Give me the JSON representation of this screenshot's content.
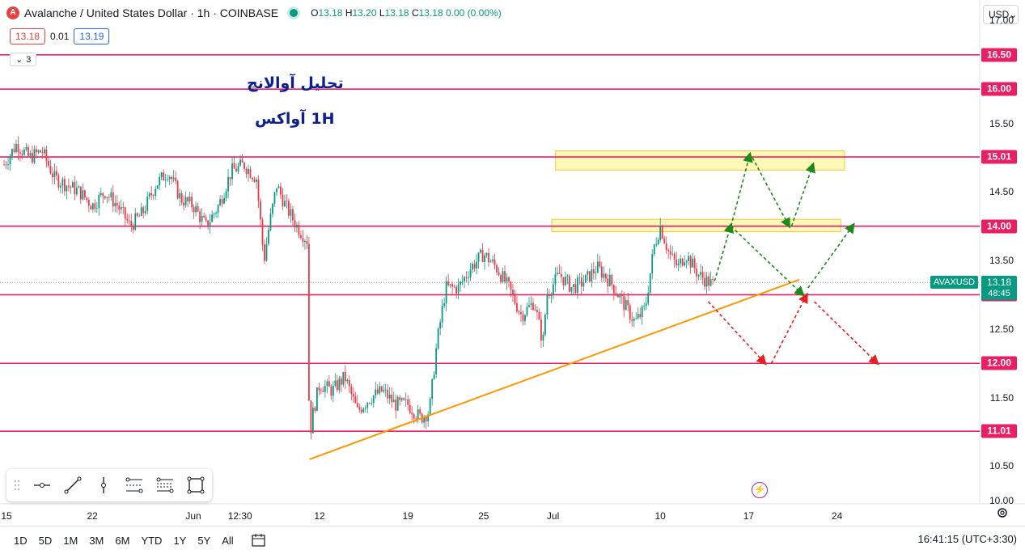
{
  "header": {
    "logo_letter": "A",
    "title": "Avalanche / United States Dollar · 1h · COINBASE",
    "ohlc": [
      {
        "k": "O",
        "v": "13.18"
      },
      {
        "k": "H",
        "v": "13.20"
      },
      {
        "k": "L",
        "v": "13.18"
      },
      {
        "k": "C",
        "v": "13.18"
      },
      {
        "k": "",
        "v": "0.00 (0.00%)"
      }
    ],
    "sell_price": "13.18",
    "spread": "0.01",
    "buy_price": "13.19",
    "indicator_count": "3",
    "currency": "USD"
  },
  "annotation": {
    "line1": "تحلیل آوالانچ",
    "line2": "1H  آواکس"
  },
  "chart_data": {
    "type": "candlestick",
    "symbol": "AVAXUSD",
    "exchange": "COINBASE",
    "interval": "1h",
    "ylim": [
      9.95,
      17.3
    ],
    "y_ticks": [
      "10.00",
      "10.50",
      "11.50",
      "12.50",
      "13.50",
      "14.50",
      "15.50",
      "17.00"
    ],
    "horizontal_levels": [
      "16.50",
      "16.00",
      "15.01",
      "14.00",
      "13.00",
      "12.00",
      "11.01"
    ],
    "current_price": "13.18",
    "countdown": "48:45",
    "x_ticks": [
      {
        "label": "15",
        "x": 0
      },
      {
        "label": "22",
        "x": 7
      },
      {
        "label": "Jun",
        "x": 15
      },
      {
        "label": "12:30",
        "x": 18.7
      },
      {
        "label": "12",
        "x": 25
      },
      {
        "label": "19",
        "x": 32
      },
      {
        "label": "25",
        "x": 38
      },
      {
        "label": "Jul",
        "x": 43.5
      },
      {
        "label": "10",
        "x": 52
      },
      {
        "label": "17",
        "x": 59
      },
      {
        "label": "24",
        "x": 66
      }
    ],
    "price_path": [
      [
        0,
        14.9
      ],
      [
        1,
        15.2
      ],
      [
        2,
        15.0
      ],
      [
        3,
        15.1
      ],
      [
        4,
        14.7
      ],
      [
        5,
        14.6
      ],
      [
        6,
        14.5
      ],
      [
        7,
        14.3
      ],
      [
        8,
        14.5
      ],
      [
        9,
        14.3
      ],
      [
        10,
        14.0
      ],
      [
        11,
        14.2
      ],
      [
        12,
        14.6
      ],
      [
        13,
        14.8
      ],
      [
        14,
        14.4
      ],
      [
        15,
        14.3
      ],
      [
        16,
        14.0
      ],
      [
        17,
        14.3
      ],
      [
        18,
        14.8
      ],
      [
        19,
        14.9
      ],
      [
        20,
        14.7
      ],
      [
        20.6,
        13.5
      ],
      [
        21,
        14.0
      ],
      [
        21.6,
        14.6
      ],
      [
        22.3,
        14.3
      ],
      [
        23.2,
        14.0
      ],
      [
        24,
        13.8
      ],
      [
        24.2,
        10.9
      ],
      [
        24.5,
        11.3
      ],
      [
        25,
        11.7
      ],
      [
        26,
        11.6
      ],
      [
        27,
        11.8
      ],
      [
        28,
        11.3
      ],
      [
        29,
        11.5
      ],
      [
        30,
        11.6
      ],
      [
        31,
        11.4
      ],
      [
        32,
        11.4
      ],
      [
        33,
        11.2
      ],
      [
        33.7,
        11.3
      ],
      [
        34.3,
        12.3
      ],
      [
        35,
        13.1
      ],
      [
        36,
        13.1
      ],
      [
        37,
        13.4
      ],
      [
        38,
        13.6
      ],
      [
        39,
        13.4
      ],
      [
        40,
        13.1
      ],
      [
        41,
        12.7
      ],
      [
        42,
        12.9
      ],
      [
        42.7,
        12.3
      ],
      [
        43,
        13.0
      ],
      [
        44,
        13.3
      ],
      [
        45,
        13.1
      ],
      [
        46,
        13.2
      ],
      [
        47,
        13.4
      ],
      [
        48,
        13.2
      ],
      [
        49,
        12.9
      ],
      [
        50,
        12.6
      ],
      [
        50.8,
        12.8
      ],
      [
        51.5,
        13.7
      ],
      [
        52,
        14.0
      ],
      [
        52.7,
        13.6
      ],
      [
        53.4,
        13.4
      ],
      [
        54,
        13.6
      ],
      [
        55,
        13.3
      ],
      [
        55.7,
        13.2
      ],
      [
        56.2,
        13.15
      ]
    ],
    "trendline": [
      [
        24.2,
        10.6
      ],
      [
        63,
        13.22
      ]
    ],
    "zones": [
      {
        "x": [
          43.7,
          66.6
        ],
        "y": [
          14.82,
          15.1
        ],
        "color": "#fff59d"
      },
      {
        "x": [
          43.4,
          66.3
        ],
        "y": [
          13.92,
          14.1
        ],
        "color": "#fff59d"
      }
    ],
    "scenario_arrows": [
      {
        "color": "#1a8a1a",
        "from": [
          56.3,
          13.2
        ],
        "to": [
          57.6,
          14.02
        ]
      },
      {
        "color": "#1a8a1a",
        "from": [
          57.6,
          14.0
        ],
        "to": [
          59.1,
          15.05
        ]
      },
      {
        "color": "#1a8a1a",
        "from": [
          59.3,
          15.0
        ],
        "to": [
          62.2,
          14.0
        ]
      },
      {
        "color": "#1a8a1a",
        "from": [
          62.4,
          14.0
        ],
        "to": [
          64.1,
          14.9
        ]
      },
      {
        "color": "#1a8a1a",
        "from": [
          57.6,
          14.0
        ],
        "to": [
          63.3,
          13.0
        ]
      },
      {
        "color": "#1a8a1a",
        "from": [
          63.7,
          13.1
        ],
        "to": [
          67.3,
          14.02
        ]
      },
      {
        "color": "#e52020",
        "from": [
          55.8,
          12.9
        ],
        "to": [
          60.3,
          12.0
        ]
      },
      {
        "color": "#e52020",
        "from": [
          60.8,
          12.0
        ],
        "to": [
          63.6,
          13.0
        ]
      },
      {
        "color": "#e52020",
        "from": [
          64.2,
          12.9
        ],
        "to": [
          69.2,
          12.0
        ]
      }
    ]
  },
  "toolbar": {
    "tools": [
      "horizontal-line",
      "trend-line",
      "vertical-line",
      "parallel-channel",
      "fib-retracement",
      "rectangle"
    ]
  },
  "bottom": {
    "ranges": [
      "1D",
      "5D",
      "1M",
      "3M",
      "6M",
      "YTD",
      "1Y",
      "5Y",
      "All"
    ],
    "clock": "16:41:15 (UTC+3:30)"
  },
  "colors": {
    "level": "#e91e63",
    "trend": "#ff9800",
    "up": "#089981",
    "down": "#f23645"
  }
}
